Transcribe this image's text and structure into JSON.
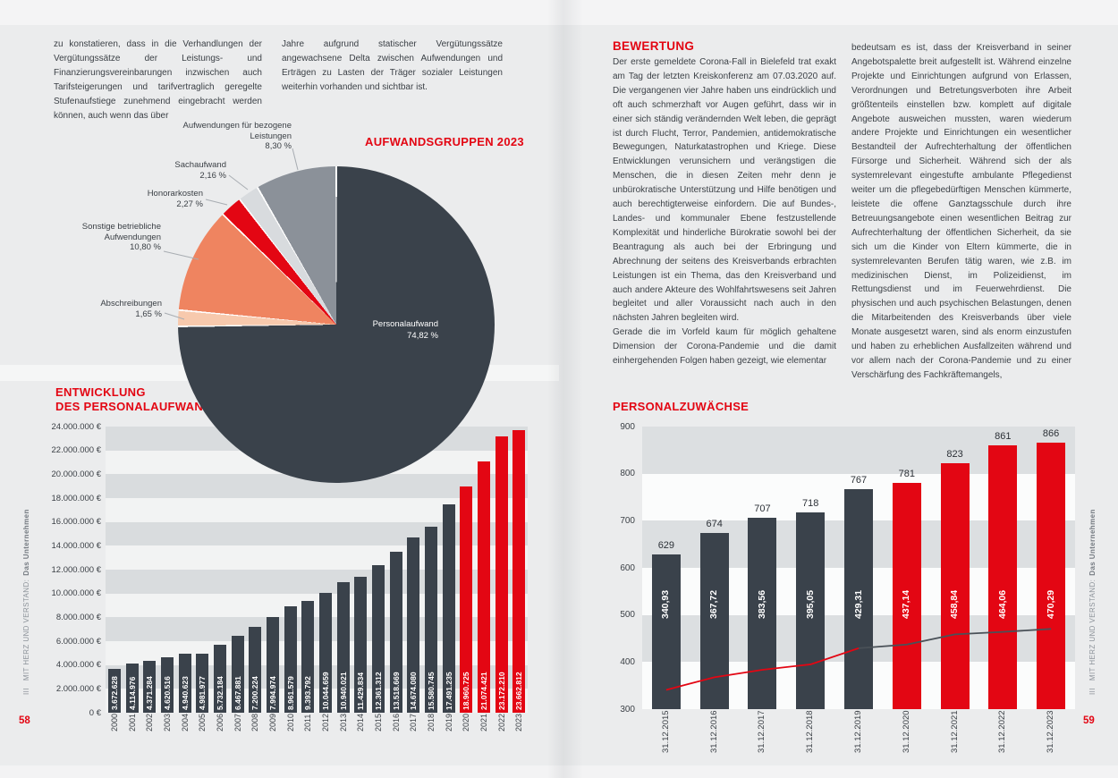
{
  "colors": {
    "accent_red": "#e30613",
    "bar_dark": "#3a424b",
    "page_background": "#ebeced",
    "body_text": "#3b4046"
  },
  "pages": {
    "left": {
      "page_number": "58",
      "margin_label_section": "III",
      "margin_label_text": "MIT HERZ UND VERSTAND:",
      "margin_label_bold": "Das Unternehmen",
      "columns": [
        "zu konstatieren, dass in die Verhandlungen der Vergütungssätze der Leistungs- und Finanzierungsvereinbarungen inzwischen auch Tarifsteigerungen und tarifvertraglich geregelte Stufenaufstiege zunehmend eingebracht werden können, auch wenn das über",
        "Jahre aufgrund statischer Vergütungssätze angewachsene Delta zwischen Aufwendungen und Erträgen zu Lasten der Träger sozialer Leistungen weiterhin vorhanden und sichtbar ist."
      ]
    },
    "right": {
      "page_number": "59",
      "margin_label_section": "III",
      "margin_label_text": "MIT HERZ UND VERSTAND:",
      "margin_label_bold": "Das Unternehmen",
      "heading": "BEWERTUNG",
      "column1_paragraphs": [
        "Der erste gemeldete Corona-Fall in Bielefeld trat exakt am Tag der letzten Kreiskonferenz am 07.03.2020 auf. Die vergangenen vier Jahre haben uns eindrücklich und oft auch schmerzhaft vor Augen geführt, dass wir in einer sich ständig verändernden Welt leben, die geprägt ist durch Flucht, Terror, Pandemien, antidemokratische Bewegungen, Naturkatastrophen und Kriege. Diese Entwicklungen verunsichern und verängstigen die Menschen, die in diesen Zeiten mehr denn je unbürokratische Unterstützung und Hilfe benötigen und auch berechtigterweise einfordern. Die auf Bundes-, Landes- und kommunaler Ebene festzustellende Komplexität und hinderliche Bürokratie sowohl bei der Beantragung als auch bei der Erbringung und Abrechnung der seitens des Kreisverbands erbrachten Leistungen ist ein Thema, das den Kreisverband und auch andere Akteure des Wohlfahrtswesens seit Jahren begleitet und aller Voraussicht nach auch in den nächsten Jahren begleiten wird.",
        "Gerade die im Vorfeld kaum für möglich gehaltene Dimension der Corona-Pandemie und die damit einhergehenden Folgen haben gezeigt, wie elementar"
      ],
      "column2": "bedeutsam es ist, dass der Kreisverband in seiner Angebotspalette breit aufgestellt ist. Während einzelne Projekte und Einrichtungen aufgrund von Erlassen, Verordnungen und Betretungsverboten ihre Arbeit größtenteils einstellen bzw. komplett auf digitale Angebote ausweichen mussten, waren wiederum andere Projekte und Einrichtungen ein wesentlicher Bestandteil der Aufrechterhaltung der öffentlichen Fürsorge und Sicherheit. Während sich der als systemrelevant eingestufte ambulante Pflegedienst weiter um die pflegebedürftigen Menschen kümmerte, leistete die offene Ganztagsschule durch ihre Betreuungsangebote einen wesentlichen Beitrag zur Aufrechterhaltung der öffentlichen Sicherheit, da sie sich um die Kinder von Eltern kümmerte, die in systemrelevanten Berufen tätig waren, wie z.B. im medizinischen Dienst, im Polizeidienst, im Rettungsdienst und im Feuerwehrdienst. Die physischen und auch psychischen Belastungen, denen die Mitarbeitenden des Kreisverbands über viele Monate ausgesetzt waren, sind als enorm einzustufen und haben zu erheblichen Ausfallzeiten während und vor allem nach der Corona-Pandemie und zu einer Verschärfung des Fachkräftemangels,"
    }
  },
  "chart_data": [
    {
      "type": "pie",
      "title": "AUFWANDSGRUPPEN 2023",
      "slices": [
        {
          "label": "Personalaufwand",
          "label_lines": [
            "Personalaufwand"
          ],
          "value_label": "74,82 %",
          "pct": 74.82,
          "color": "#3a424b"
        },
        {
          "label": "Abschreibungen",
          "label_lines": [
            "Abschreibungen"
          ],
          "value_label": "1,65 %",
          "pct": 1.65,
          "color": "#f7c9ad"
        },
        {
          "label": "Sonstige betriebliche Aufwendungen",
          "label_lines": [
            "Sonstige betriebliche",
            "Aufwendungen"
          ],
          "value_label": "10,80 %",
          "pct": 10.8,
          "color": "#ef8460"
        },
        {
          "label": "Honorarkosten",
          "label_lines": [
            "Honorarkosten"
          ],
          "value_label": "2,27 %",
          "pct": 2.27,
          "color": "#e30613"
        },
        {
          "label": "Sachaufwand",
          "label_lines": [
            "Sachaufwand"
          ],
          "value_label": "2,16 %",
          "pct": 2.16,
          "color": "#d8dbde"
        },
        {
          "label": "Aufwendungen für bezogene Leistungen",
          "label_lines": [
            "Aufwendungen für bezogene",
            "Leistungen"
          ],
          "value_label": "8,30 %",
          "pct": 8.3,
          "color": "#8b9199"
        }
      ]
    },
    {
      "type": "bar",
      "title_lines": [
        "ENTWICKLUNG",
        "DES PERSONALAUFWANDS"
      ],
      "ylabel": "",
      "ylim": [
        0,
        24000000
      ],
      "ytick_labels": [
        "24.000.000 €",
        "22.000.000 €",
        "20.000.000 €",
        "18.000.000 €",
        "16.000.000 €",
        "14.000.000 €",
        "12.000.000 €",
        "10.000.000 €",
        "8.000.000 €",
        "6.000.000 €",
        "4.000.000 €",
        "2.000.000 €",
        "0 €"
      ],
      "categories": [
        "2000",
        "2001",
        "2002",
        "2003",
        "2004",
        "2005",
        "2006",
        "2007",
        "2008",
        "2009",
        "2010",
        "2011",
        "2012",
        "2013",
        "2014",
        "2015",
        "2016",
        "2017",
        "2018",
        "2019",
        "2020",
        "2021",
        "2022",
        "2023"
      ],
      "values": [
        3672628,
        4114976,
        4371284,
        4620516,
        4940623,
        4981977,
        5732184,
        6467881,
        7200224,
        7994974,
        8961579,
        9393792,
        10044659,
        10940021,
        11429834,
        12361312,
        13518669,
        14674080,
        15580745,
        17491235,
        18960725,
        21074421,
        23172210,
        23662812
      ],
      "value_labels": [
        "3.672.628",
        "4.114.976",
        "4.371.284",
        "4.620.516",
        "4.940.623",
        "4.981.977",
        "5.732.184",
        "6.467.881",
        "7.200.224",
        "7.994.974",
        "8.961.579",
        "9.393.792",
        "10.044.659",
        "10.940.021",
        "11.429.834",
        "12.361.312",
        "13.518.669",
        "14.674.080",
        "15.580.745",
        "17.491.235",
        "18.960.725",
        "21.074.421",
        "23.172.210",
        "23.662.812"
      ],
      "colors": {
        "default": "#3a424b",
        "red": "#e30613",
        "red_from_index": 20
      }
    },
    {
      "type": "bar",
      "title": "PERSONALZUWÄCHSE",
      "ylim": [
        300,
        900
      ],
      "ytick_labels": [
        "900",
        "800",
        "700",
        "600",
        "500",
        "400",
        "300"
      ],
      "categories": [
        "31.12.2015",
        "31.12.2016",
        "31.12.2017",
        "31.12.2018",
        "31.12.2019",
        "31.12.2020",
        "31.12.2021",
        "31.12.2022",
        "31.12.2023"
      ],
      "series": [
        {
          "kind": "bar",
          "values": [
            629,
            674,
            707,
            718,
            767,
            781,
            823,
            861,
            866
          ],
          "value_labels": [
            "629",
            "674",
            "707",
            "718",
            "767",
            "781",
            "823",
            "861",
            "866"
          ],
          "colors": {
            "default": "#3a424b",
            "red": "#e30613",
            "red_from_index": 5
          }
        },
        {
          "kind": "line",
          "values": [
            340.93,
            367.72,
            383.56,
            395.05,
            429.31,
            437.14,
            458.84,
            464.06,
            470.29
          ],
          "value_labels": [
            "340,93",
            "367,72",
            "383,56",
            "395,05",
            "429,31",
            "437,14",
            "458,84",
            "464,06",
            "470,29"
          ],
          "segments": [
            {
              "from": 0,
              "to": 4,
              "color": "#e30613"
            },
            {
              "from": 4,
              "to": 8,
              "color": "#4a5158"
            }
          ]
        }
      ]
    }
  ]
}
